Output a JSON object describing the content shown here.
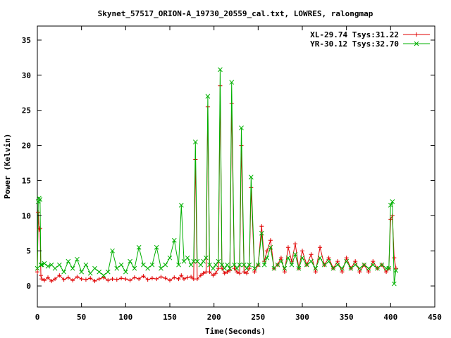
{
  "chart_data": {
    "type": "line",
    "title": "Skynet_57517_ORION-A_19730_20559_cal.txt, LOWRES, ralongmap",
    "xlabel": "Time(Seconds)",
    "ylabel": "Power (Kelvin)",
    "xlim": [
      0,
      450
    ],
    "ylim": [
      -3,
      37
    ],
    "xticks": [
      0,
      50,
      100,
      150,
      200,
      250,
      300,
      350,
      400,
      450
    ],
    "yticks": [
      0,
      5,
      10,
      15,
      20,
      25,
      30,
      35
    ],
    "xtick_labels": [
      "0",
      "50",
      "100",
      "150",
      "200",
      "250",
      "300",
      "350",
      "400",
      "450"
    ],
    "ytick_labels": [
      "0",
      "5",
      "10",
      "15",
      "20",
      "25",
      "30",
      "35"
    ],
    "grid": false,
    "legend_position": "top-right",
    "series": [
      {
        "name": "XL-29.74 Tsys:31.22",
        "color": "#e00000",
        "marker": "plus",
        "x": [
          0,
          1,
          2,
          3,
          4,
          5,
          8,
          12,
          16,
          20,
          25,
          30,
          35,
          40,
          45,
          50,
          55,
          60,
          65,
          70,
          75,
          80,
          85,
          90,
          95,
          100,
          105,
          110,
          115,
          120,
          125,
          130,
          135,
          140,
          145,
          150,
          155,
          160,
          163,
          166,
          170,
          174,
          177,
          179,
          181,
          185,
          188,
          191,
          193,
          195,
          199,
          202,
          205,
          207,
          209,
          212,
          215,
          218,
          220,
          223,
          226,
          229,
          231,
          234,
          237,
          240,
          242,
          246,
          250,
          254,
          257,
          260,
          264,
          268,
          272,
          276,
          280,
          284,
          288,
          292,
          296,
          300,
          305,
          310,
          315,
          320,
          325,
          330,
          335,
          340,
          345,
          350,
          355,
          360,
          365,
          370,
          375,
          380,
          385,
          390,
          395,
          398,
          400,
          402,
          404,
          406
        ],
        "y": [
          2.0,
          10.5,
          8.0,
          8.2,
          1.5,
          1.0,
          0.8,
          1.2,
          0.7,
          1.0,
          1.5,
          0.9,
          1.2,
          0.8,
          1.3,
          1.0,
          0.9,
          1.1,
          0.7,
          1.0,
          1.2,
          0.8,
          1.0,
          0.9,
          1.1,
          1.0,
          0.8,
          1.2,
          1.0,
          1.4,
          0.9,
          1.1,
          1.0,
          1.3,
          1.1,
          0.8,
          1.2,
          1.0,
          1.5,
          1.0,
          1.2,
          1.3,
          1.0,
          18.0,
          1.0,
          1.5,
          1.8,
          2.0,
          25.5,
          2.0,
          1.5,
          1.8,
          2.5,
          28.5,
          2.5,
          1.8,
          2.0,
          2.2,
          26.0,
          2.5,
          2.0,
          1.8,
          20.0,
          2.0,
          1.8,
          2.5,
          14.0,
          2.0,
          3.0,
          8.5,
          3.5,
          5.0,
          6.5,
          2.5,
          3.0,
          4.0,
          2.0,
          5.5,
          3.5,
          6.0,
          2.5,
          5.0,
          3.0,
          4.5,
          2.0,
          5.5,
          3.0,
          4.0,
          2.5,
          3.5,
          2.0,
          4.0,
          2.5,
          3.5,
          2.0,
          3.0,
          2.0,
          3.5,
          2.5,
          3.0,
          2.0,
          2.5,
          9.5,
          10.0,
          4.0,
          2.5
        ]
      },
      {
        "name": "YR-30.12 Tsys:32.70",
        "color": "#00b000",
        "marker": "cross",
        "x": [
          0,
          1,
          2,
          3,
          4,
          5,
          8,
          12,
          16,
          20,
          25,
          30,
          35,
          40,
          45,
          50,
          55,
          60,
          65,
          70,
          75,
          80,
          85,
          90,
          95,
          100,
          105,
          110,
          115,
          120,
          125,
          130,
          135,
          140,
          145,
          150,
          155,
          160,
          163,
          166,
          170,
          174,
          177,
          179,
          181,
          185,
          188,
          191,
          193,
          195,
          199,
          202,
          205,
          207,
          209,
          212,
          215,
          218,
          220,
          223,
          226,
          229,
          231,
          234,
          237,
          240,
          242,
          246,
          250,
          254,
          257,
          260,
          264,
          268,
          272,
          276,
          280,
          284,
          288,
          292,
          296,
          300,
          305,
          310,
          315,
          320,
          325,
          330,
          335,
          340,
          345,
          350,
          355,
          360,
          365,
          370,
          375,
          380,
          385,
          390,
          395,
          398,
          400,
          402,
          404,
          406
        ],
        "y": [
          2.5,
          12.0,
          12.5,
          12.3,
          3.0,
          3.0,
          3.2,
          2.8,
          3.0,
          2.5,
          3.0,
          2.0,
          3.5,
          2.5,
          3.8,
          2.0,
          3.0,
          1.8,
          2.5,
          2.0,
          1.5,
          2.0,
          5.0,
          2.5,
          3.0,
          2.0,
          3.5,
          2.5,
          5.5,
          3.0,
          2.5,
          3.0,
          5.5,
          2.5,
          3.0,
          4.0,
          6.5,
          3.0,
          11.5,
          3.5,
          4.0,
          3.0,
          3.5,
          20.5,
          3.5,
          3.0,
          3.5,
          4.0,
          27.0,
          3.0,
          2.5,
          3.0,
          3.5,
          30.8,
          3.0,
          2.5,
          3.0,
          2.5,
          29.0,
          3.0,
          2.5,
          3.0,
          22.5,
          3.0,
          2.5,
          3.0,
          15.5,
          2.5,
          3.0,
          7.5,
          3.0,
          4.0,
          5.5,
          2.5,
          3.0,
          3.5,
          2.5,
          4.0,
          3.0,
          4.5,
          2.5,
          4.0,
          3.0,
          3.5,
          2.5,
          4.0,
          3.0,
          3.5,
          2.5,
          3.0,
          2.5,
          3.5,
          2.5,
          3.0,
          2.5,
          3.0,
          2.5,
          3.0,
          2.5,
          3.0,
          2.5,
          2.5,
          11.5,
          12.0,
          0.3,
          2.2
        ]
      }
    ]
  }
}
